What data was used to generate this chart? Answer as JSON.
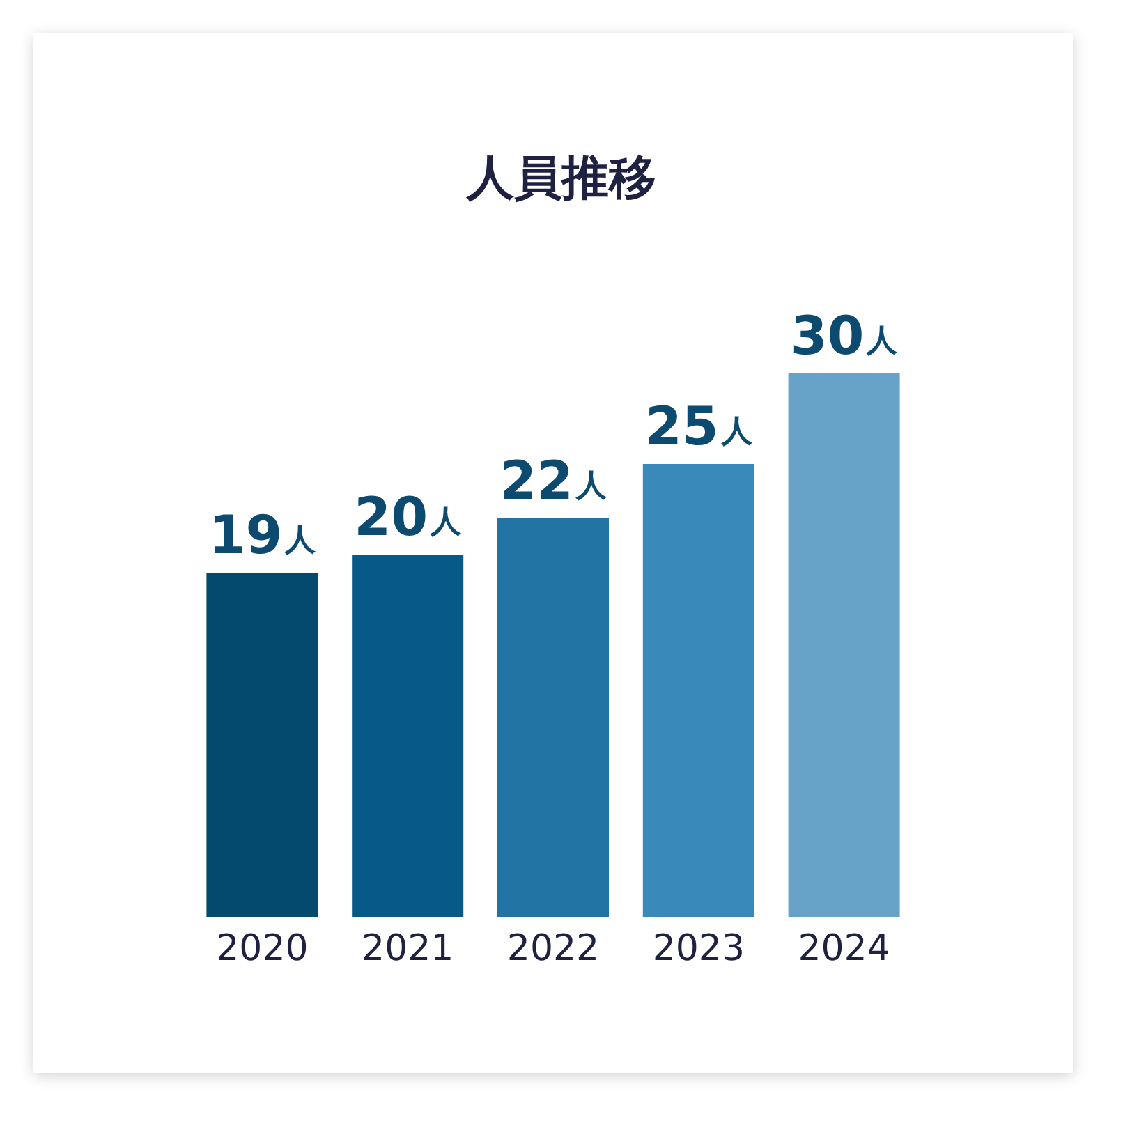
{
  "chart_data": {
    "type": "bar",
    "title": "人員推移",
    "categories": [
      "2020",
      "2021",
      "2022",
      "2023",
      "2024"
    ],
    "values": [
      19,
      20,
      22,
      25,
      30
    ],
    "colors": [
      "#034a6e",
      "#075a87",
      "#2274a5",
      "#3a89bb",
      "#67a3c9"
    ],
    "value_labels": [
      "19人",
      "20人",
      "22人",
      "25人",
      "30人"
    ]
  }
}
